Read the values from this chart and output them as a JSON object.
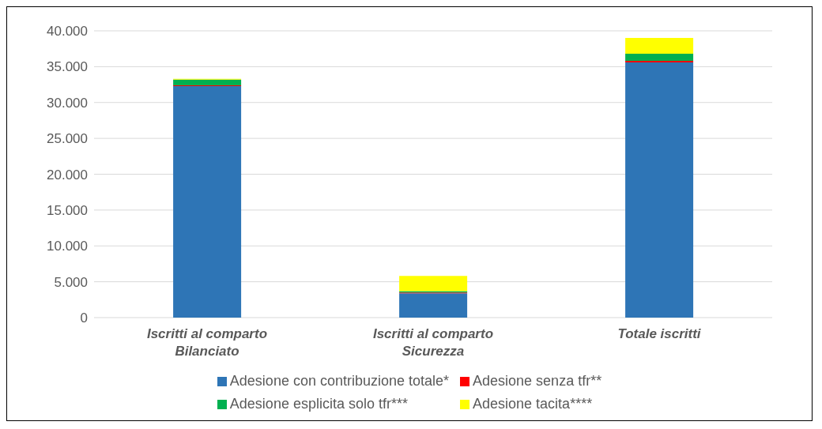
{
  "chart_data": {
    "type": "bar",
    "stacked": true,
    "categories": [
      "Iscritti al comparto Bilanciato",
      "Iscritti al comparto Sicurezza",
      "Totale iscritti"
    ],
    "series": [
      {
        "name": "Adesione con contribuzione totale*",
        "color": "#2e75b6",
        "values": [
          32300,
          3400,
          35600
        ]
      },
      {
        "name": "Adesione senza tfr**",
        "color": "#ff0000",
        "values": [
          100,
          100,
          200
        ]
      },
      {
        "name": "Adesione esplicita solo tfr***",
        "color": "#00b050",
        "values": [
          800,
          200,
          1000
        ]
      },
      {
        "name": "Adesione tacita****",
        "color": "#ffff00",
        "values": [
          100,
          2100,
          2200
        ]
      }
    ],
    "ylim": [
      0,
      40000
    ],
    "yticks": [
      {
        "value": 0,
        "label": "0"
      },
      {
        "value": 5000,
        "label": "5.000"
      },
      {
        "value": 10000,
        "label": "10.000"
      },
      {
        "value": 15000,
        "label": "15.000"
      },
      {
        "value": 20000,
        "label": "20.000"
      },
      {
        "value": 25000,
        "label": "25.000"
      },
      {
        "value": 30000,
        "label": "30.000"
      },
      {
        "value": 35000,
        "label": "35.000"
      },
      {
        "value": 40000,
        "label": "40.000"
      }
    ],
    "grid": "y",
    "legend": "bottom"
  }
}
